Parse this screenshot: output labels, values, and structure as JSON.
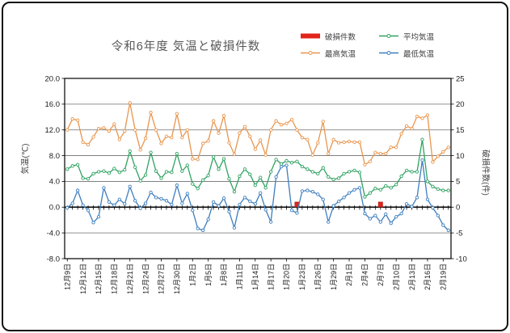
{
  "chart_data": {
    "type": "line",
    "title": "令和6年度 気温と破損件数",
    "legend_position": "top-right",
    "grid": true,
    "x_tick_every": 3,
    "left_axis": {
      "title": "気温(℃)",
      "min": -8,
      "max": 20,
      "tick_values": [
        20,
        16,
        12,
        8,
        4,
        0,
        -4,
        -8
      ],
      "tick_labels": [
        "20.0",
        "16.0",
        "12.0",
        "8.0",
        "4.0",
        "0.0",
        "-4.0",
        "-8.0"
      ]
    },
    "right_axis": {
      "title": "破損件数(件)",
      "min": -10,
      "max": 25,
      "tick_values": [
        25,
        20,
        15,
        10,
        5,
        0,
        -5,
        -10
      ],
      "tick_labels": [
        "25",
        "20",
        "15",
        "10",
        "5",
        "0",
        "-5",
        "-10"
      ]
    },
    "x_labels": [
      "12月9日",
      "12月10日",
      "12月11日",
      "12月12日",
      "12月13日",
      "12月14日",
      "12月15日",
      "12月16日",
      "12月17日",
      "12月18日",
      "12月19日",
      "12月20日",
      "12月21日",
      "12月22日",
      "12月23日",
      "12月24日",
      "12月25日",
      "12月26日",
      "12月27日",
      "12月28日",
      "12月29日",
      "12月30日",
      "12月31日",
      "1月1日",
      "1月2日",
      "1月3日",
      "1月4日",
      "1月5日",
      "1月6日",
      "1月7日",
      "1月8日",
      "1月9日",
      "1月10日",
      "1月11日",
      "1月12日",
      "1月13日",
      "1月14日",
      "1月15日",
      "1月16日",
      "1月17日",
      "1月18日",
      "1月19日",
      "1月20日",
      "1月21日",
      "1月22日",
      "1月23日",
      "1月24日",
      "1月25日",
      "1月26日",
      "1月27日",
      "1月28日",
      "1月29日",
      "1月30日",
      "1月31日",
      "2月1日",
      "2月2日",
      "2月3日",
      "2月4日",
      "2月5日",
      "2月6日",
      "2月7日",
      "2月8日",
      "2月9日",
      "2月10日",
      "2月11日",
      "2月12日",
      "2月13日",
      "2月14日",
      "2月15日",
      "2月16日",
      "2月17日",
      "2月18日",
      "2月19日",
      "2月20日"
    ],
    "series": [
      {
        "name": "破損件数",
        "kind": "bar",
        "axis": "right",
        "color": "#E2231A",
        "values": [
          0,
          0,
          0,
          0,
          0,
          0,
          0,
          0,
          0,
          0,
          0,
          0,
          0,
          0,
          0,
          0,
          0,
          0,
          0,
          0,
          0,
          0,
          0,
          0,
          0,
          0,
          0,
          0,
          0,
          0,
          0,
          0,
          0,
          0,
          0,
          0,
          0,
          0,
          0,
          0,
          0,
          0,
          0,
          0,
          1,
          0,
          0,
          0,
          0,
          0,
          0,
          0,
          0,
          0,
          0,
          0,
          0,
          0,
          0,
          0,
          1,
          0,
          0,
          0,
          0,
          0,
          0,
          0,
          0,
          0,
          0,
          0,
          0,
          0
        ]
      },
      {
        "name": "最高気温",
        "kind": "line",
        "axis": "left",
        "color": "#E8964E",
        "values": [
          12.0,
          13.7,
          13.5,
          10.1,
          9.7,
          10.9,
          12.2,
          12.3,
          11.8,
          12.9,
          10.5,
          11.8,
          16.2,
          12.0,
          8.9,
          10.7,
          14.7,
          12.0,
          9.9,
          11.0,
          10.8,
          14.5,
          10.8,
          12.0,
          7.5,
          7.4,
          9.9,
          10.3,
          13.4,
          11.5,
          14.2,
          10.0,
          8.2,
          11.5,
          12.5,
          11.0,
          9.0,
          10.4,
          8.1,
          12.0,
          13.4,
          12.8,
          13.0,
          13.6,
          12.0,
          10.8,
          10.5,
          8.1,
          10.0,
          13.3,
          8.3,
          10.5,
          10.0,
          10.1,
          10.2,
          10.1,
          10.1,
          6.6,
          7.1,
          8.5,
          8.3,
          8.3,
          9.3,
          9.3,
          11.4,
          12.6,
          12.2,
          14.1,
          13.8,
          14.3,
          7.0,
          7.9,
          8.6,
          9.3
        ]
      },
      {
        "name": "平均気温",
        "kind": "line",
        "axis": "left",
        "color": "#2FA361",
        "values": [
          5.9,
          6.4,
          6.6,
          4.5,
          4.4,
          5.2,
          5.5,
          5.6,
          5.3,
          6.0,
          5.4,
          5.8,
          8.7,
          6.2,
          4.1,
          5.0,
          8.5,
          5.6,
          4.5,
          5.5,
          5.4,
          8.3,
          5.6,
          6.5,
          3.6,
          2.9,
          4.2,
          4.9,
          7.8,
          5.9,
          7.5,
          4.4,
          2.4,
          4.8,
          5.9,
          5.1,
          3.4,
          4.6,
          3.0,
          5.5,
          7.4,
          6.7,
          7.2,
          6.9,
          7.1,
          6.3,
          5.9,
          5.5,
          5.2,
          6.1,
          4.7,
          4.3,
          4.5,
          5.2,
          5.5,
          5.7,
          5.4,
          1.6,
          2.2,
          2.9,
          2.7,
          3.3,
          3.0,
          3.5,
          4.8,
          5.7,
          5.5,
          5.5,
          10.5,
          4.0,
          3.2,
          2.8,
          2.6,
          2.6
        ]
      },
      {
        "name": "最低気温",
        "kind": "line",
        "axis": "left",
        "color": "#3D7EBE",
        "values": [
          -0.1,
          0.6,
          2.6,
          0.3,
          -0.5,
          -2.4,
          -1.5,
          3.0,
          0.8,
          0.3,
          1.2,
          0.5,
          3.2,
          1.0,
          -0.2,
          0.6,
          2.3,
          1.5,
          1.3,
          1.0,
          0.4,
          3.4,
          0.6,
          2.1,
          -0.5,
          -3.3,
          -3.6,
          -1.9,
          0.8,
          0.2,
          1.4,
          -0.7,
          -3.2,
          0.4,
          1.5,
          0.9,
          0.5,
          2.2,
          -0.4,
          -2.3,
          4.7,
          6.3,
          6.5,
          -0.5,
          -0.9,
          2.5,
          2.6,
          2.4,
          2.0,
          1.2,
          -2.3,
          0.2,
          0.9,
          1.5,
          2.2,
          2.7,
          3.0,
          -1.0,
          -1.8,
          -1.3,
          -2.3,
          -1.1,
          -2.5,
          -1.5,
          -1.0,
          0.5,
          0.1,
          1.5,
          7.3,
          1.2,
          -0.1,
          -1.3,
          -2.8,
          -3.6
        ]
      }
    ],
    "style": {
      "grid_color": "#6E6E6E",
      "axis_color": "#000000",
      "tick_text_color": "#1a1a1a",
      "title_color": "#595959"
    }
  }
}
